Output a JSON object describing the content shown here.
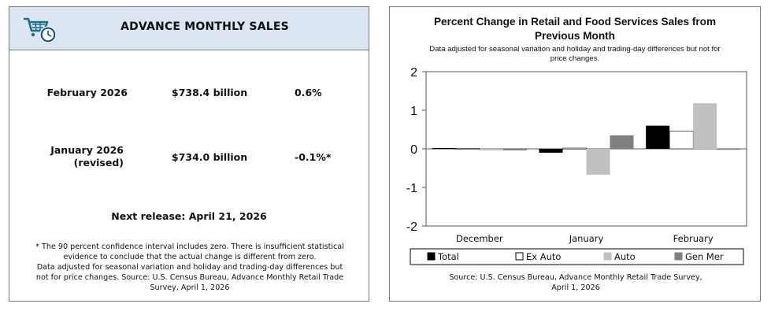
{
  "left_panel": {
    "header_title": "ADVANCE MONTHLY SALES",
    "logo_icon": "shopping-cart-clock-icon",
    "rows": [
      {
        "label_line1": "February 2026",
        "label_line2": "",
        "amount": "$738.4 billion",
        "percent": "0.6%"
      },
      {
        "label_line1": "January 2026",
        "label_line2": "(revised)",
        "amount": "$734.0 billion",
        "percent": "-0.1%*"
      }
    ],
    "next_release": "Next release: April 21, 2026",
    "footnote_lines": [
      "* The 90 percent confidence interval includes zero. There is insufficient statistical",
      "evidence to conclude that the actual change is different from zero.",
      "Data adjusted for seasonal variation and holiday and trading-day differences but",
      "not for price changes. Source: U.S. Census Bureau, Advance Monthly Retail Trade",
      "Survey, April 1, 2026"
    ]
  },
  "chart_data": {
    "type": "bar",
    "title_line1": "Percent Change in Retail and Food Services Sales from",
    "title_line2": "Previous Month",
    "subtitle_line1": "Data adjusted for seasonal variation and holiday and trading-day differences but not for",
    "subtitle_line2": "price changes.",
    "categories": [
      "December",
      "January",
      "February"
    ],
    "ylim": [
      -2,
      2
    ],
    "yticks": [
      "2",
      "1",
      "0",
      "-1",
      "-2"
    ],
    "grid": false,
    "legend_position": "bottom",
    "series": [
      {
        "name": "Total",
        "values": [
          0.02,
          -0.1,
          0.6
        ],
        "color": "#000000"
      },
      {
        "name": "Ex Auto",
        "values": [
          0.01,
          0.02,
          0.46
        ],
        "color": "#ffffff"
      },
      {
        "name": "Auto",
        "values": [
          -0.04,
          -0.67,
          1.18
        ],
        "color": "#c0c0c0"
      },
      {
        "name": "Gen Mer",
        "values": [
          -0.04,
          0.35,
          -0.02
        ],
        "color": "#7f7f7f"
      }
    ],
    "source_lines": [
      "Source: U.S. Census Bureau, Advance Monthly Retail Trade Survey,",
      "April 1, 2026"
    ]
  }
}
